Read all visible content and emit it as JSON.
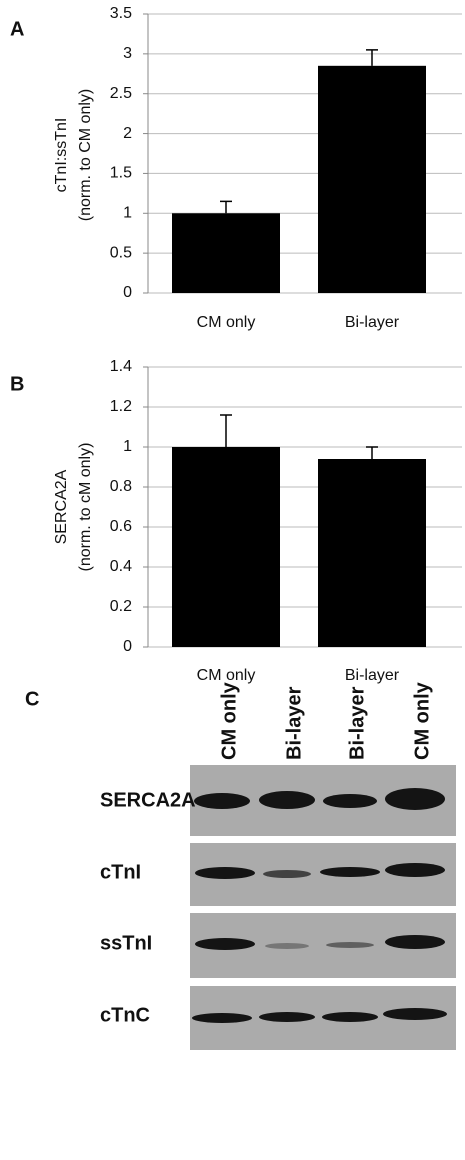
{
  "chart_data": [
    {
      "type": "bar",
      "panel_label": "A",
      "ylabel": [
        "cTnI:ssTnI",
        "(norm. to CM only)"
      ],
      "categories": [
        "CM only",
        "Bi-layer"
      ],
      "values": [
        1.0,
        2.85
      ],
      "errors": [
        0.15,
        0.2
      ],
      "color": "#000000",
      "ylim": [
        0,
        3.5
      ],
      "yticks": [
        0,
        0.5,
        1,
        1.5,
        2,
        2.5,
        3,
        3.5
      ],
      "grid": true
    },
    {
      "type": "bar",
      "panel_label": "B",
      "ylabel": [
        "SERCA2A",
        "(norm. to cM only)"
      ],
      "categories": [
        "CM only",
        "Bi-layer"
      ],
      "values": [
        1.0,
        0.94
      ],
      "errors": [
        0.16,
        0.06
      ],
      "color": "#000000",
      "ylim": [
        0,
        1.4
      ],
      "yticks": [
        0,
        0.2,
        0.4,
        0.6,
        0.8,
        1,
        1.2,
        1.4
      ],
      "grid": true
    }
  ],
  "blot": {
    "panel_label": "C",
    "lanes": [
      "CM only",
      "Bi-layer",
      "Bi-layer",
      "CM only"
    ],
    "rows": [
      "SERCA2A",
      "cTnI",
      "ssTnI",
      "cTnC"
    ]
  }
}
